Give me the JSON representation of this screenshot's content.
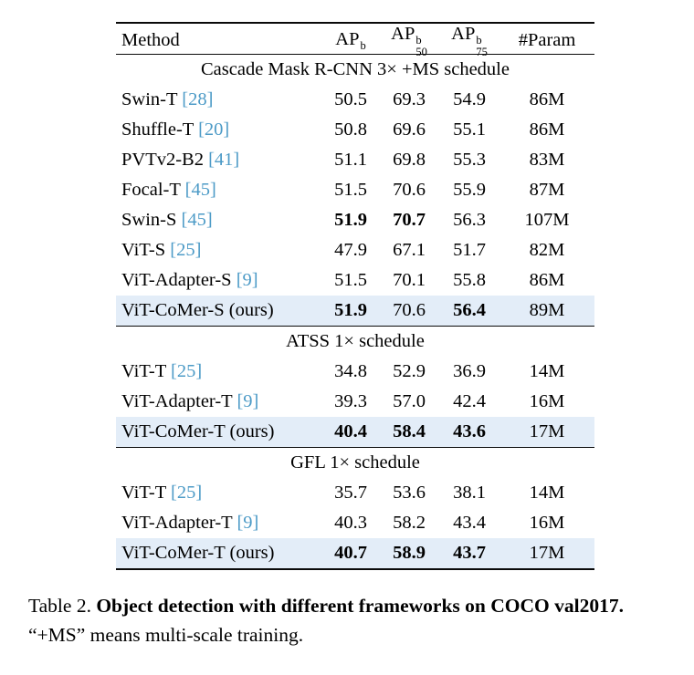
{
  "accent": {
    "citation_color": "#4d9bc7",
    "highlight_row_bg": "#e3edf8"
  },
  "table": {
    "headers": {
      "method": "Method",
      "ap_cols": [
        {
          "base": "AP",
          "sup": "b",
          "sub": ""
        },
        {
          "base": "AP",
          "sup": "b",
          "sub": "50"
        },
        {
          "base": "AP",
          "sup": "b",
          "sub": "75"
        }
      ],
      "param": "#Param"
    },
    "sections": [
      {
        "title": "Cascade Mask R-CNN 3× +MS schedule",
        "rows": [
          {
            "method": "Swin-T",
            "cite": "28",
            "values": [
              "50.5",
              "69.3",
              "54.9"
            ],
            "bold": [
              false,
              false,
              false
            ],
            "param": "86M",
            "highlight": false
          },
          {
            "method": "Shuffle-T",
            "cite": "20",
            "values": [
              "50.8",
              "69.6",
              "55.1"
            ],
            "bold": [
              false,
              false,
              false
            ],
            "param": "86M",
            "highlight": false
          },
          {
            "method": "PVTv2-B2",
            "cite": "41",
            "values": [
              "51.1",
              "69.8",
              "55.3"
            ],
            "bold": [
              false,
              false,
              false
            ],
            "param": "83M",
            "highlight": false
          },
          {
            "method": "Focal-T",
            "cite": "45",
            "values": [
              "51.5",
              "70.6",
              "55.9"
            ],
            "bold": [
              false,
              false,
              false
            ],
            "param": "87M",
            "highlight": false
          },
          {
            "method": "Swin-S",
            "cite": "45",
            "values": [
              "51.9",
              "70.7",
              "56.3"
            ],
            "bold": [
              true,
              true,
              false
            ],
            "param": "107M",
            "highlight": false
          },
          {
            "method": "ViT-S",
            "cite": "25",
            "values": [
              "47.9",
              "67.1",
              "51.7"
            ],
            "bold": [
              false,
              false,
              false
            ],
            "param": "82M",
            "highlight": false
          },
          {
            "method": "ViT-Adapter-S",
            "cite": "9",
            "values": [
              "51.5",
              "70.1",
              "55.8"
            ],
            "bold": [
              false,
              false,
              false
            ],
            "param": "86M",
            "highlight": false
          },
          {
            "method": "ViT-CoMer-S (ours)",
            "cite": "",
            "values": [
              "51.9",
              "70.6",
              "56.4"
            ],
            "bold": [
              true,
              false,
              true
            ],
            "param": "89M",
            "highlight": true
          }
        ]
      },
      {
        "title": "ATSS 1× schedule",
        "rows": [
          {
            "method": "ViT-T",
            "cite": "25",
            "values": [
              "34.8",
              "52.9",
              "36.9"
            ],
            "bold": [
              false,
              false,
              false
            ],
            "param": "14M",
            "highlight": false
          },
          {
            "method": "ViT-Adapter-T",
            "cite": "9",
            "values": [
              "39.3",
              "57.0",
              "42.4"
            ],
            "bold": [
              false,
              false,
              false
            ],
            "param": "16M",
            "highlight": false
          },
          {
            "method": "ViT-CoMer-T (ours)",
            "cite": "",
            "values": [
              "40.4",
              "58.4",
              "43.6"
            ],
            "bold": [
              true,
              true,
              true
            ],
            "param": "17M",
            "highlight": true
          }
        ]
      },
      {
        "title": "GFL 1× schedule",
        "rows": [
          {
            "method": "ViT-T",
            "cite": "25",
            "values": [
              "35.7",
              "53.6",
              "38.1"
            ],
            "bold": [
              false,
              false,
              false
            ],
            "param": "14M",
            "highlight": false
          },
          {
            "method": "ViT-Adapter-T",
            "cite": "9",
            "values": [
              "40.3",
              "58.2",
              "43.4"
            ],
            "bold": [
              false,
              false,
              false
            ],
            "param": "16M",
            "highlight": false
          },
          {
            "method": "ViT-CoMer-T (ours)",
            "cite": "",
            "values": [
              "40.7",
              "58.9",
              "43.7"
            ],
            "bold": [
              true,
              true,
              true
            ],
            "param": "17M",
            "highlight": true
          }
        ]
      }
    ]
  },
  "caption": {
    "label": "Table 2.",
    "bold_text": "Object detection with different frameworks on COCO val2017.",
    "normal_text": "“+MS” means multi-scale training."
  }
}
